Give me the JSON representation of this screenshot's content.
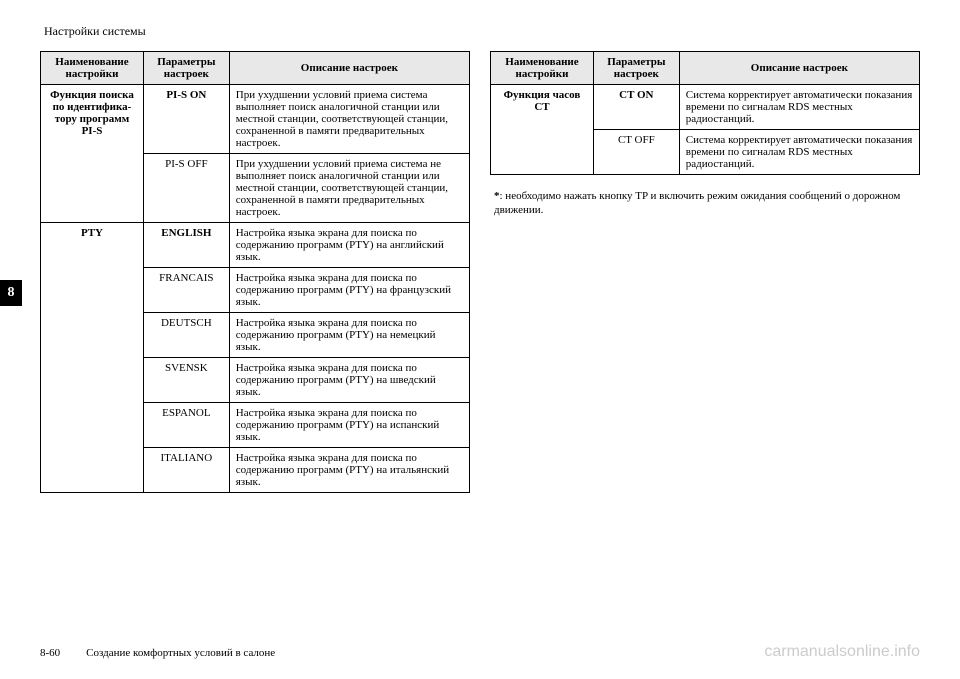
{
  "header": "Настройки системы",
  "sideTab": "8",
  "tableHeaders": {
    "col1": "Наименование настройки",
    "col2": "Параметры настроек",
    "col3": "Описание настроек"
  },
  "leftTable": {
    "rows": [
      {
        "name": "Функция поиска по идентифика-\nтору программ PI-S",
        "nameBold": true,
        "rowspan": 2,
        "param": "PI-S ON",
        "paramBold": true,
        "desc": "При ухудшении условий приема система выполняет поиск аналогичной станции или местной станции, соответствующей станции, сохраненной в памяти предварительных настроек."
      },
      {
        "param": "PI-S OFF",
        "paramBold": false,
        "desc": "При ухудшении условий приема система не выполняет поиск аналогичной станции или местной станции, соответствующей станции, сохраненной в памяти предварительных настроек."
      },
      {
        "name": "PTY",
        "nameBold": true,
        "rowspan": 6,
        "param": "ENGLISH",
        "paramBold": true,
        "desc": "Настройка языка экрана для поиска по содержанию программ (PTY) на английский язык."
      },
      {
        "param": "FRANCAIS",
        "paramBold": false,
        "desc": "Настройка языка экрана для поиска по содержанию программ (PTY) на французский язык."
      },
      {
        "param": "DEUTSCH",
        "paramBold": false,
        "desc": "Настройка языка экрана для поиска по содержанию программ (PTY) на немецкий язык."
      },
      {
        "param": "SVENSK",
        "paramBold": false,
        "desc": "Настройка языка экрана для поиска по содержанию программ (PTY) на шведский язык."
      },
      {
        "param": "ESPANOL",
        "paramBold": false,
        "desc": "Настройка языка экрана для поиска по содержанию программ (PTY) на испанский язык."
      },
      {
        "param": "ITALIANO",
        "paramBold": false,
        "desc": "Настройка языка экрана для поиска по содержанию программ (PTY) на итальянский язык."
      }
    ]
  },
  "rightTable": {
    "rows": [
      {
        "name": "Функция часов CT",
        "nameBold": true,
        "rowspan": 2,
        "param": "CT ON",
        "paramBold": true,
        "desc": "Система корректирует автоматически показания времени по сигналам RDS местных радиостанций."
      },
      {
        "param": "CT OFF",
        "paramBold": false,
        "desc": "Система корректирует автоматически показания времени по сигналам RDS местных радиостанций."
      }
    ]
  },
  "footnote": "*: необходимо нажать кнопку TP и включить режим ожидания сообщений о дорожном движении.",
  "footer": {
    "pageNum": "8-60",
    "title": "Создание комфортных условий в салоне",
    "watermark": "carmanualsonline.info"
  }
}
